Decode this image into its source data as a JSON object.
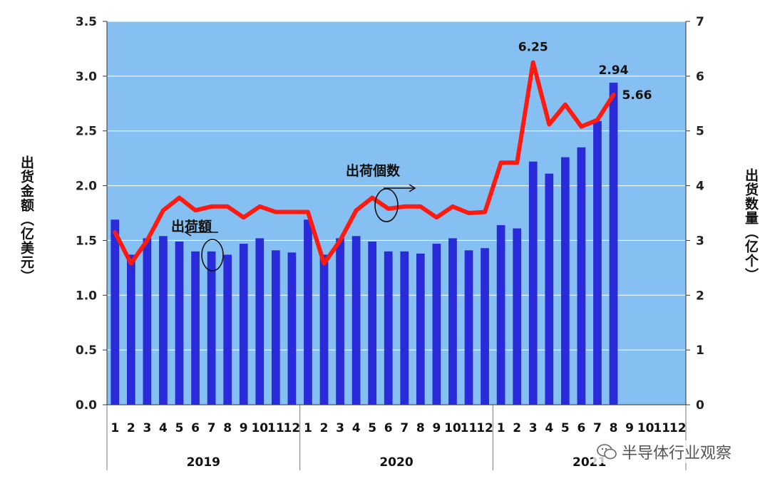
{
  "chart_data": {
    "type": "bar",
    "categories": [
      "1",
      "2",
      "3",
      "4",
      "5",
      "6",
      "7",
      "8",
      "9",
      "10",
      "11",
      "12",
      "1",
      "2",
      "3",
      "4",
      "5",
      "6",
      "7",
      "8",
      "9",
      "10",
      "11",
      "12",
      "1",
      "2",
      "3",
      "4",
      "5",
      "6",
      "7",
      "8",
      "9",
      "10",
      "11",
      "12"
    ],
    "years": [
      "2019",
      "2020",
      "2021"
    ],
    "series": [
      {
        "axis": "left",
        "type": "bar",
        "color": "#2a2bd8",
        "values": [
          1.69,
          1.37,
          1.52,
          1.54,
          1.49,
          1.4,
          1.4,
          1.37,
          1.47,
          1.52,
          1.41,
          1.39,
          1.69,
          1.37,
          1.52,
          1.54,
          1.49,
          1.4,
          1.4,
          1.38,
          1.47,
          1.52,
          1.41,
          1.43,
          1.64,
          1.61,
          2.22,
          2.11,
          2.26,
          2.35,
          2.59,
          2.94,
          null,
          null,
          null,
          null
        ]
      },
      {
        "axis": "right",
        "type": "line",
        "color": "#ff1a0f",
        "values": [
          3.15,
          2.58,
          3.0,
          3.55,
          3.78,
          3.55,
          3.62,
          3.62,
          3.42,
          3.62,
          3.52,
          3.52,
          3.52,
          2.58,
          3.0,
          3.55,
          3.78,
          3.58,
          3.62,
          3.62,
          3.42,
          3.62,
          3.5,
          3.52,
          4.42,
          4.42,
          6.25,
          5.12,
          5.48,
          5.08,
          5.2,
          5.66,
          null,
          null,
          null,
          null
        ]
      }
    ],
    "ylabel_left": "出货金额（亿美元）",
    "ylabel_right": "出货数量（亿个）",
    "ylim_left": [
      0,
      3.5
    ],
    "ylim_right": [
      0,
      7
    ],
    "yticks_left": [
      "0.0",
      "0.5",
      "1.0",
      "1.5",
      "2.0",
      "2.5",
      "3.0",
      "3.5"
    ],
    "yticks_right": [
      "0",
      "1",
      "2",
      "3",
      "4",
      "5",
      "6",
      "7"
    ],
    "data_labels": [
      {
        "text": "6.25",
        "index": 26,
        "series": 1
      },
      {
        "text": "2.94",
        "index": 31,
        "series": 0
      },
      {
        "text": "5.66",
        "index": 31,
        "series": 1
      }
    ],
    "annotations": {
      "amount": "出荷額",
      "count": "出荷個数"
    },
    "plot_bg": "#86bff2",
    "grid": true
  },
  "watermark": "半导体行业观察"
}
